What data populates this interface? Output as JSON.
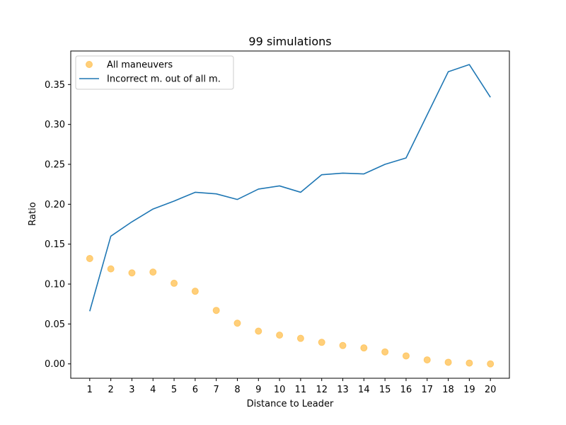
{
  "chart_data": {
    "type": "line",
    "title": "99 simulations",
    "xlabel": "Distance to Leader",
    "ylabel": "Ratio",
    "x": [
      1,
      2,
      3,
      4,
      5,
      6,
      7,
      8,
      9,
      10,
      11,
      12,
      13,
      14,
      15,
      16,
      17,
      18,
      19,
      20
    ],
    "xlim": [
      0.1,
      20.9
    ],
    "ylim": [
      -0.018,
      0.392
    ],
    "yticks": [
      0.0,
      0.05,
      0.1,
      0.15,
      0.2,
      0.25,
      0.3,
      0.35
    ],
    "ytick_labels": [
      "0.00",
      "0.05",
      "0.10",
      "0.15",
      "0.20",
      "0.25",
      "0.30",
      "0.35"
    ],
    "xtick_labels": [
      "1",
      "2",
      "3",
      "4",
      "5",
      "6",
      "7",
      "8",
      "9",
      "10",
      "11",
      "12",
      "13",
      "14",
      "15",
      "16",
      "17",
      "18",
      "19",
      "20"
    ],
    "grid": false,
    "legend_position": "top-left",
    "series": [
      {
        "name": "All maneuvers",
        "type": "scatter",
        "color": "#ffbf4d",
        "values": [
          0.132,
          0.119,
          0.114,
          0.115,
          0.101,
          0.091,
          0.067,
          0.051,
          0.041,
          0.036,
          0.032,
          0.027,
          0.023,
          0.02,
          0.015,
          0.01,
          0.005,
          0.002,
          0.001,
          0.0
        ]
      },
      {
        "name": "Incorrect m. out of all m.",
        "type": "line",
        "color": "#1f77b4",
        "values": [
          0.066,
          0.16,
          0.178,
          0.194,
          0.204,
          0.215,
          0.213,
          0.206,
          0.219,
          0.223,
          0.215,
          0.237,
          0.239,
          0.238,
          0.25,
          0.258,
          0.312,
          0.366,
          0.375,
          0.334
        ]
      }
    ]
  }
}
